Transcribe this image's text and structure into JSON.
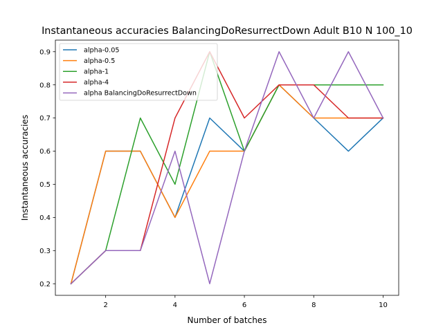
{
  "chart_data": {
    "type": "line",
    "title": "Instantaneous accuracies BalancingDoResurrectDown Adult B10 N 100_10",
    "xlabel": "Number of batches",
    "ylabel": "Instantaneous accuracies",
    "x": [
      1,
      2,
      3,
      4,
      5,
      6,
      7,
      8,
      9,
      10
    ],
    "xlim": [
      0.55,
      10.45
    ],
    "ylim": [
      0.165,
      0.935
    ],
    "xticks": [
      2,
      4,
      6,
      8,
      10
    ],
    "xtick_labels": [
      "2",
      "4",
      "6",
      "8",
      "10"
    ],
    "yticks": [
      0.2,
      0.3,
      0.4,
      0.5,
      0.6,
      0.7,
      0.8,
      0.9
    ],
    "ytick_labels": [
      "0.2",
      "0.3",
      "0.4",
      "0.5",
      "0.6",
      "0.7",
      "0.8",
      "0.9"
    ],
    "grid": false,
    "legend_position": "top-left",
    "series": [
      {
        "name": "alpha-0.05",
        "color": "#1f77b4",
        "values": [
          0.2,
          0.6,
          0.6,
          0.4,
          0.7,
          0.6,
          0.8,
          0.7,
          0.6,
          0.7
        ]
      },
      {
        "name": "alpha-0.5",
        "color": "#ff7f0e",
        "values": [
          0.2,
          0.6,
          0.6,
          0.4,
          0.6,
          0.6,
          0.8,
          0.7,
          0.7,
          0.7
        ]
      },
      {
        "name": "alpha-1",
        "color": "#2ca02c",
        "values": [
          0.2,
          0.3,
          0.7,
          0.5,
          0.9,
          0.6,
          0.8,
          0.8,
          0.8,
          0.8
        ]
      },
      {
        "name": "alpha-4",
        "color": "#d62728",
        "values": [
          0.2,
          0.3,
          0.3,
          0.7,
          0.9,
          0.7,
          0.8,
          0.8,
          0.7,
          0.7
        ]
      },
      {
        "name": "alpha BalancingDoResurrectDown",
        "color": "#9467bd",
        "values": [
          0.2,
          0.3,
          0.3,
          0.6,
          0.2,
          0.6,
          0.9,
          0.7,
          0.9,
          0.7
        ]
      }
    ]
  }
}
